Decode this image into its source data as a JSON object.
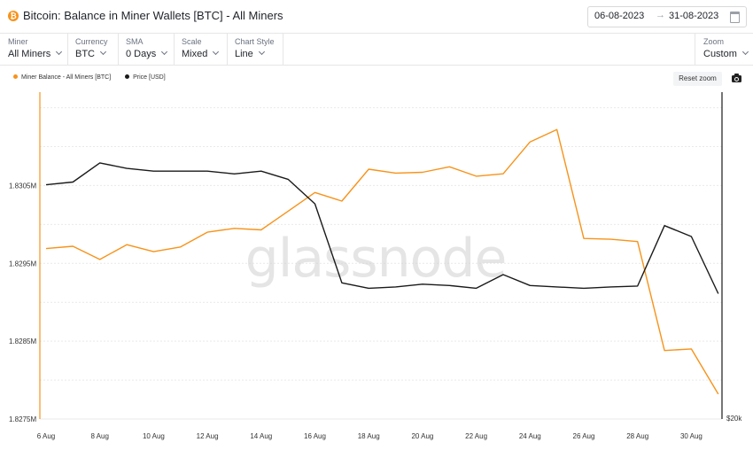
{
  "header": {
    "title": "Bitcoin: Balance in Miner Wallets [BTC] - All Miners",
    "coin_icon": "bitcoin-icon",
    "date_start": "06-08-2023",
    "date_arrow": "→",
    "date_end": "31-08-2023",
    "calendar_icon": "calendar-icon"
  },
  "controls": [
    {
      "label": "Miner",
      "value": "All Miners"
    },
    {
      "label": "Currency",
      "value": "BTC"
    },
    {
      "label": "SMA",
      "value": "0 Days"
    },
    {
      "label": "Scale",
      "value": "Mixed"
    },
    {
      "label": "Chart Style",
      "value": "Line"
    },
    {
      "label": "Zoom",
      "value": "Custom"
    }
  ],
  "toolbar": {
    "reset_zoom": "Reset zoom",
    "camera_icon": "camera-icon"
  },
  "legend": [
    {
      "label": "Miner Balance - All Miners [BTC]",
      "color": "#f7931a"
    },
    {
      "label": "Price [USD]",
      "color": "#1a1a1a"
    }
  ],
  "chart_data": {
    "type": "line",
    "watermark": "glassnode",
    "x": [
      "6 Aug",
      "7 Aug",
      "8 Aug",
      "9 Aug",
      "10 Aug",
      "11 Aug",
      "12 Aug",
      "13 Aug",
      "14 Aug",
      "15 Aug",
      "16 Aug",
      "17 Aug",
      "18 Aug",
      "19 Aug",
      "20 Aug",
      "21 Aug",
      "22 Aug",
      "23 Aug",
      "24 Aug",
      "25 Aug",
      "26 Aug",
      "27 Aug",
      "28 Aug",
      "29 Aug",
      "30 Aug",
      "31 Aug"
    ],
    "x_tick_labels": [
      "6 Aug",
      "8 Aug",
      "10 Aug",
      "12 Aug",
      "14 Aug",
      "16 Aug",
      "18 Aug",
      "20 Aug",
      "22 Aug",
      "24 Aug",
      "26 Aug",
      "28 Aug",
      "30 Aug"
    ],
    "y_left": {
      "ylim": [
        1.8275,
        1.8317
      ],
      "tick_values": [
        1.8275,
        1.8285,
        1.8295,
        1.8305
      ],
      "tick_labels": [
        "1.8275M",
        "1.8285M",
        "1.8295M",
        "1.8305M"
      ]
    },
    "y_right": {
      "ylim": [
        29000,
        30200
      ],
      "tick_labels": [
        "$20k"
      ]
    },
    "grid": true,
    "legend_position": "top-left",
    "series": [
      {
        "name": "Miner Balance - All Miners [BTC]",
        "axis": "left",
        "color": "#f7931a",
        "values": [
          1.82969,
          1.82972,
          1.82955,
          1.82974,
          1.82965,
          1.82971,
          1.8299,
          1.82995,
          1.82993,
          1.83017,
          1.83041,
          1.8303,
          1.83071,
          1.83066,
          1.83067,
          1.83074,
          1.83062,
          1.83065,
          1.83106,
          1.83122,
          1.82982,
          1.82981,
          1.82978,
          1.82838,
          1.8284,
          1.82782
        ]
      },
      {
        "name": "Price [USD]",
        "axis": "right",
        "color": "#1a1a1a",
        "values": [
          29860,
          29870,
          29940,
          29920,
          29910,
          29910,
          29910,
          29900,
          29910,
          29880,
          29790,
          29500,
          29480,
          29485,
          29495,
          29490,
          29480,
          29530,
          29490,
          29485,
          29480,
          29485,
          29488,
          29710,
          29670,
          29460
        ]
      }
    ]
  }
}
